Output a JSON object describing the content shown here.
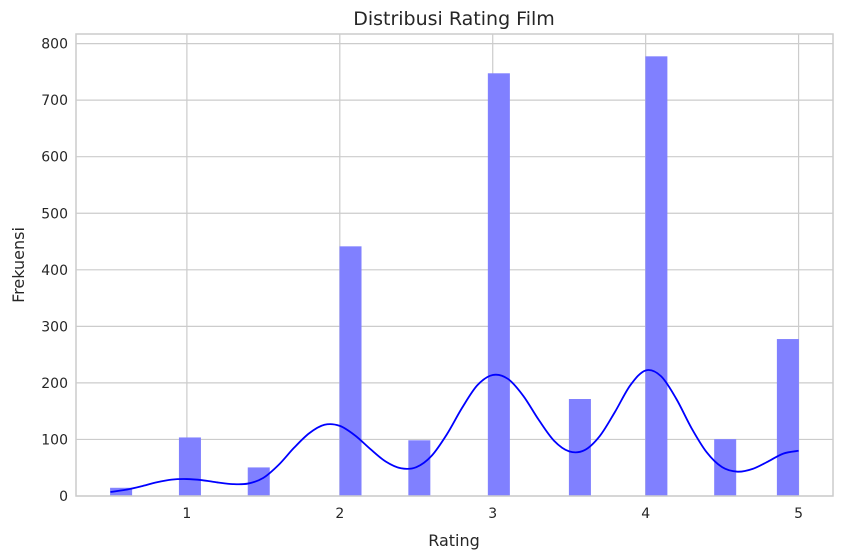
{
  "chart_data": {
    "type": "bar",
    "title": "Distribusi Rating Film",
    "xlabel": "Rating",
    "ylabel": "Frekuensi",
    "xlim": [
      0.275,
      5.225
    ],
    "ylim": [
      0,
      817
    ],
    "grid": true,
    "x_ticks": [
      1,
      2,
      3,
      4,
      5
    ],
    "y_ticks": [
      0,
      100,
      200,
      300,
      400,
      500,
      600,
      700,
      800
    ],
    "bins": [
      {
        "x0": 0.5,
        "x1": 0.64,
        "count": 14
      },
      {
        "x0": 0.95,
        "x1": 1.09,
        "count": 103
      },
      {
        "x0": 1.4,
        "x1": 1.54,
        "count": 50
      },
      {
        "x0": 2.0,
        "x1": 2.14,
        "count": 441
      },
      {
        "x0": 2.45,
        "x1": 2.59,
        "count": 98
      },
      {
        "x0": 2.97,
        "x1": 3.11,
        "count": 747
      },
      {
        "x0": 3.5,
        "x1": 3.64,
        "count": 171
      },
      {
        "x0": 4.0,
        "x1": 4.14,
        "count": 777
      },
      {
        "x0": 4.45,
        "x1": 4.59,
        "count": 100
      },
      {
        "x0": 4.86,
        "x1": 5.0,
        "count": 277
      }
    ],
    "kde": {
      "x": [
        0.5,
        0.6,
        0.7,
        0.8,
        0.9,
        1.0,
        1.1,
        1.2,
        1.3,
        1.4,
        1.5,
        1.6,
        1.7,
        1.8,
        1.9,
        2.0,
        2.1,
        2.2,
        2.3,
        2.4,
        2.5,
        2.6,
        2.7,
        2.8,
        2.9,
        3.0,
        3.1,
        3.2,
        3.3,
        3.4,
        3.5,
        3.6,
        3.7,
        3.8,
        3.9,
        4.0,
        4.1,
        4.2,
        4.3,
        4.4,
        4.5,
        4.6,
        4.7,
        4.8,
        4.9,
        5.0
      ],
      "y": [
        7,
        11,
        17,
        24,
        29,
        30,
        28,
        24,
        21,
        22,
        32,
        55,
        85,
        111,
        126,
        124,
        107,
        83,
        61,
        49,
        51,
        71,
        109,
        156,
        196,
        214,
        207,
        177,
        135,
        98,
        79,
        81,
        106,
        149,
        196,
        222,
        212,
        172,
        120,
        77,
        51,
        43,
        48,
        61,
        75,
        80
      ]
    },
    "colors": {
      "bar": "#8080ff",
      "kde": "#0000ff",
      "grid": "#cccccc",
      "axis": "#cccccc",
      "text": "#262626"
    }
  }
}
